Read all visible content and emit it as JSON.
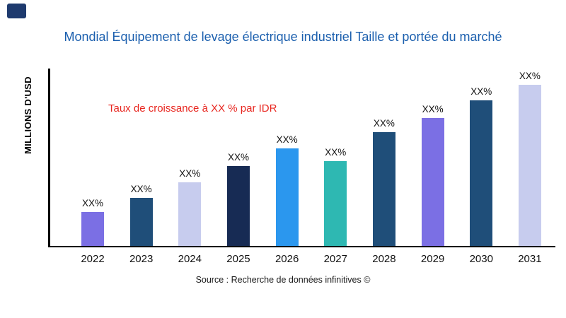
{
  "brand": {
    "logo_color": "#1E3A6E"
  },
  "chart_data": {
    "type": "bar",
    "title": "Mondial Équipement de levage électrique industriel Taille et portée du marché",
    "title_color": "#1B5FAE",
    "ylabel": "MILLIONS D'USD",
    "xlabel": "",
    "categories": [
      "2022",
      "2023",
      "2024",
      "2025",
      "2026",
      "2027",
      "2028",
      "2029",
      "2030",
      "2031"
    ],
    "values": [
      19,
      27,
      36,
      45,
      55,
      48,
      64,
      72,
      82,
      91
    ],
    "bar_labels": [
      "XX%",
      "XX%",
      "XX%",
      "XX%",
      "XX%",
      "XX%",
      "XX%",
      "XX%",
      "XX%",
      "XX%"
    ],
    "bar_colors": [
      "#7B6FE4",
      "#1F4E79",
      "#C7CCEE",
      "#172B54",
      "#2B97EE",
      "#2EB8B2",
      "#1F4E79",
      "#7B6FE4",
      "#1F4E79",
      "#C7CCEE"
    ],
    "ylim": [
      0,
      100
    ],
    "grid": false,
    "legend": false,
    "annotation": {
      "text": "Taux de croissance à XX % par IDR",
      "color": "#E8261F"
    },
    "source": "Source : Recherche de données infinitives ©"
  }
}
